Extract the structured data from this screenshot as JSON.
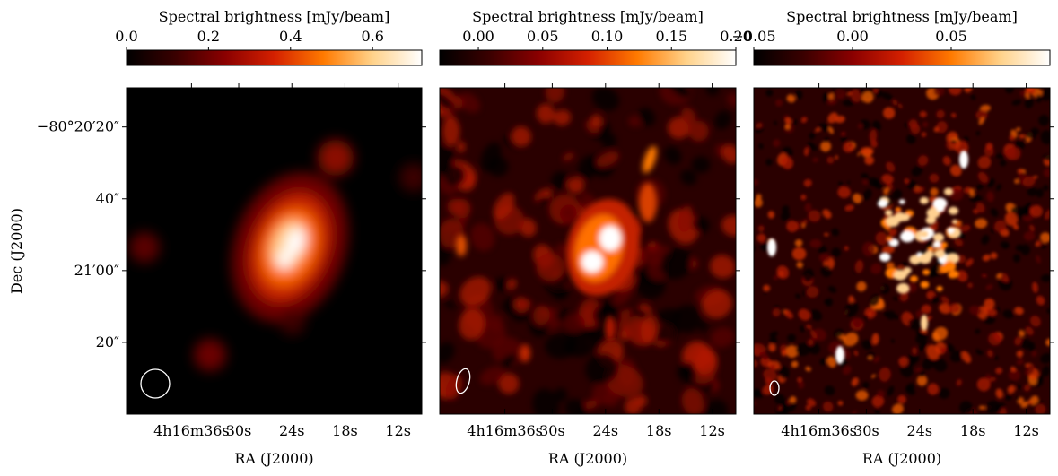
{
  "figure": {
    "colormap": [
      "#000000",
      "#3a0000",
      "#8a0000",
      "#d42000",
      "#ff7a00",
      "#ffd28a",
      "#ffffff"
    ],
    "beam_color": "#ffffff"
  },
  "chart_data": [
    {
      "type": "heatmap",
      "colorbar_label": "Spectral brightness [mJy/beam]",
      "colorbar_range": [
        0.0,
        0.72
      ],
      "colorbar_ticks": [
        "0.0",
        "0.2",
        "0.4",
        "0.6"
      ],
      "colorbar_tick_values": [
        0.0,
        0.2,
        0.4,
        0.6
      ],
      "xlabel": "RA (J2000)",
      "ylabel": "Dec (J2000)",
      "x_ticks": [
        "4h16m36s",
        "30s",
        "24s",
        "18s",
        "12s"
      ],
      "y_ticks": [
        "−80°20′20″",
        "40″",
        "21′00″",
        "20″"
      ],
      "features": "single bright compact source near center with faint halo; several faint blobs"
    },
    {
      "type": "heatmap",
      "colorbar_label": "Spectral brightness [mJy/beam]",
      "colorbar_range": [
        -0.03,
        0.2
      ],
      "colorbar_ticks": [
        "0.00",
        "0.05",
        "0.10",
        "0.15",
        "0.20"
      ],
      "colorbar_tick_values": [
        0.0,
        0.05,
        0.1,
        0.15,
        0.2
      ],
      "xlabel": "RA (J2000)",
      "x_ticks": [
        "4h16m36s",
        "30s",
        "24s",
        "18s",
        "12s"
      ],
      "features": "central bright double-peaked source, northeast extension, noisy background"
    },
    {
      "type": "heatmap",
      "colorbar_label": "Spectral brightness [mJy/beam]",
      "colorbar_range": [
        -0.05,
        0.1
      ],
      "colorbar_ticks": [
        "−0.05",
        "0.00",
        "0.05"
      ],
      "colorbar_tick_values": [
        -0.05,
        0.0,
        0.05
      ],
      "xlabel": "RA (J2000)",
      "x_ticks": [
        "4h16m36s",
        "30s",
        "24s",
        "18s",
        "12s"
      ],
      "features": "high-resolution noisy map with clumpy central emission"
    }
  ]
}
